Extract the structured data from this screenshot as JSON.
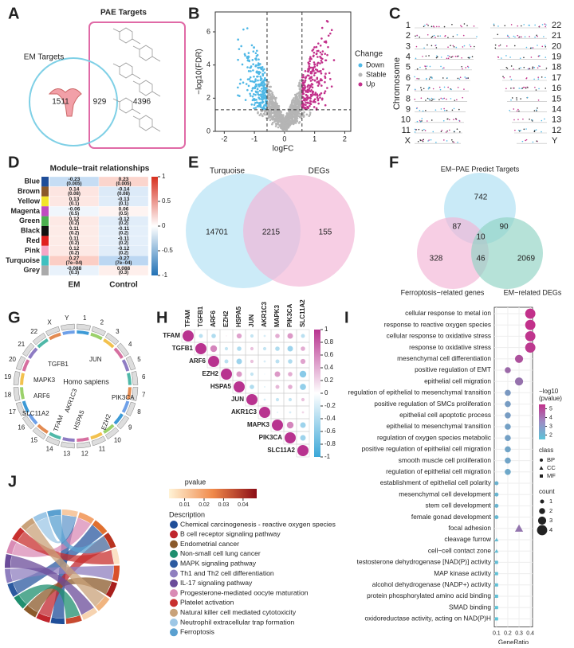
{
  "panels": {
    "A": {
      "letter": "A",
      "em_label": "EM Targets",
      "pae_label": "PAE Targets",
      "counts": [
        1511,
        929,
        4396
      ]
    },
    "B": {
      "letter": "B",
      "xlabel": "logFC",
      "ylabel": "−log10(FDR)",
      "xlim": [
        -2.3,
        2.2
      ],
      "ylim": [
        0,
        7.2
      ],
      "xticks": [
        -2,
        -1,
        0,
        1,
        2
      ],
      "yticks": [
        0,
        2,
        4,
        6
      ],
      "fc_cutoffs": [
        -0.58,
        0.58
      ],
      "fdr_cutoff": 1.3,
      "legend_title": "Change",
      "series": [
        {
          "name": "Down",
          "color": "#4fb8e6"
        },
        {
          "name": "Stable",
          "color": "#b5b5b5"
        },
        {
          "name": "Up",
          "color": "#c2318b"
        }
      ]
    },
    "C": {
      "letter": "C",
      "ylabel": "Chromosome",
      "left": [
        "1",
        "2",
        "3",
        "4",
        "5",
        "6",
        "7",
        "8",
        "9",
        "10",
        "11",
        "X"
      ],
      "right": [
        "22",
        "21",
        "20",
        "19",
        "18",
        "17",
        "16",
        "15",
        "14",
        "13",
        "12",
        "Y"
      ]
    },
    "D": {
      "letter": "D",
      "title": "Module−trait relationships",
      "columns": [
        "EM",
        "Control"
      ],
      "modules": [
        "Blue",
        "Brown",
        "Yellow",
        "Magenta",
        "Green",
        "Black",
        "Red",
        "Pink",
        "Turquoise",
        "Grey"
      ],
      "module_colors": [
        "#1f4e99",
        "#8b5a2b",
        "#f2e52a",
        "#c04bc0",
        "#4caf50",
        "#111111",
        "#e02020",
        "#f5a6c6",
        "#3fc0c0",
        "#aaaaaa"
      ],
      "cor": [
        [
          -0.23,
          0.23
        ],
        [
          0.14,
          -0.14
        ],
        [
          0.13,
          -0.13
        ],
        [
          -0.06,
          0.06
        ],
        [
          0.12,
          -0.12
        ],
        [
          0.11,
          -0.11
        ],
        [
          0.11,
          -0.11
        ],
        [
          0.12,
          -0.12
        ],
        [
          0.27,
          -0.27
        ],
        [
          -0.088,
          0.088
        ]
      ],
      "p_labels": [
        [
          "(0.005)",
          "(0.005)"
        ],
        [
          "(0.08)",
          "(0.08)"
        ],
        [
          "(0.1)",
          "(0.1)"
        ],
        [
          "(0.5)",
          "(0.5)"
        ],
        [
          "(0.2)",
          "(0.2)"
        ],
        [
          "(0.2)",
          "(0.2)"
        ],
        [
          "(0.2)",
          "(0.2)"
        ],
        [
          "(0.2)",
          "(0.2)"
        ],
        [
          "(7e−04)",
          "(7e−04)"
        ],
        [
          "(0.3)",
          "(0.3)"
        ]
      ],
      "colorbar_ticks": [
        1,
        0.5,
        0,
        -0.5,
        -1
      ]
    },
    "E": {
      "letter": "E",
      "left_label": "Turquoise",
      "right_label": "DEGs",
      "counts": [
        14701,
        2215,
        155
      ]
    },
    "F": {
      "letter": "F",
      "top_label": "EM−PAE Predict Targets",
      "left_label": "Ferroptosis−related genes",
      "right_label": "EM−related DEGs",
      "counts": {
        "top": 742,
        "top_left": 87,
        "center": 10,
        "top_right": 90,
        "left": 328,
        "bottom": 46,
        "right": 2069
      }
    },
    "G": {
      "letter": "G",
      "center_label": "Homo sapiens",
      "chromosomes": [
        "1",
        "2",
        "3",
        "4",
        "5",
        "6",
        "7",
        "8",
        "9",
        "10",
        "11",
        "12",
        "13",
        "14",
        "15",
        "16",
        "17",
        "18",
        "19",
        "20",
        "21",
        "22",
        "X",
        "Y"
      ],
      "genes": [
        "JUN",
        "TGFB1",
        "PIK3CA",
        "MAPK3",
        "ARF6",
        "SLC11A2",
        "AKR1C3",
        "TFAM",
        "HSPA5",
        "EZH2"
      ]
    },
    "H": {
      "letter": "H",
      "genes": [
        "TFAM",
        "TGFB1",
        "ARF6",
        "EZH2",
        "HSPA5",
        "JUN",
        "AKR1C3",
        "MAPK3",
        "PIK3CA",
        "SLC11A2"
      ],
      "matrix": [
        [
          1,
          -0.35,
          -0.4,
          0.1,
          0.45,
          -0.3,
          -0.2,
          0.4,
          0.5,
          -0.35
        ],
        [
          null,
          1,
          0.6,
          -0.3,
          -0.4,
          0.3,
          -0.3,
          -0.4,
          -0.5,
          0.4
        ],
        [
          null,
          null,
          1,
          -0.35,
          -0.5,
          0.3,
          -0.2,
          -0.35,
          -0.4,
          0.45
        ],
        [
          null,
          null,
          null,
          1,
          0.5,
          -0.3,
          -0.1,
          0.5,
          0.4,
          -0.6
        ],
        [
          null,
          null,
          null,
          null,
          1,
          -0.4,
          -0.15,
          0.35,
          0.4,
          -0.55
        ],
        [
          null,
          null,
          null,
          null,
          null,
          1,
          -0.2,
          -0.3,
          -0.3,
          0.3
        ],
        [
          null,
          null,
          null,
          null,
          null,
          null,
          1,
          -0.15,
          -0.2,
          0.2
        ],
        [
          null,
          null,
          null,
          null,
          null,
          null,
          null,
          1,
          0.6,
          -0.5
        ],
        [
          null,
          null,
          null,
          null,
          null,
          null,
          null,
          null,
          1,
          -0.5
        ],
        [
          null,
          null,
          null,
          null,
          null,
          null,
          null,
          null,
          null,
          1
        ]
      ],
      "colorbar_ticks": [
        1,
        0.8,
        0.6,
        0.4,
        0.2,
        0,
        -0.2,
        -0.4,
        -0.6,
        -0.8,
        -1
      ]
    },
    "I": {
      "letter": "I",
      "xlabel": "GeneRatio",
      "xlim": [
        0.08,
        0.42
      ],
      "xticks": [
        0.1,
        0.2,
        0.3,
        0.4
      ],
      "terms": [
        "cellular response to metal ion",
        "response to reactive oxygen species",
        "cellular response to oxidative stress",
        "response to oxidative stress",
        "mesenchymal cell differentiation",
        "positive regulation of EMT",
        "epithelial cell migration",
        "regulation of epithelial to mesenchymal transition",
        "positive regulation of SMCs proliferation",
        "epithelial cell apoptotic process",
        "epithelial to mesenchymal transition",
        "regulation of oxygen species metabolic",
        "positive regulation of epithelial cell migration",
        "smooth muscle cell proliferation",
        "regulation of epithelial cell migration",
        "establishment of epithelial cell polarity",
        "mesenchymal cell development",
        "stem cell development",
        "female gonad development",
        "focal adhesion",
        "cleavage furrow",
        "cell−cell contact zone",
        "testosterone dehydrogenase [NAD(P)] activity",
        "MAP kinase activity",
        "alcohol dehydrogenase (NADP+) activity",
        "protein phosphorylated amino acid binding",
        "SMAD binding",
        "oxidoreductase activity, acting on NAD(P)H"
      ],
      "gene_ratio": [
        0.4,
        0.4,
        0.4,
        0.4,
        0.3,
        0.2,
        0.3,
        0.2,
        0.2,
        0.2,
        0.2,
        0.2,
        0.2,
        0.2,
        0.2,
        0.1,
        0.1,
        0.1,
        0.1,
        0.3,
        0.1,
        0.1,
        0.1,
        0.1,
        0.1,
        0.1,
        0.1,
        0.1
      ],
      "count": [
        4,
        4,
        4,
        4,
        3,
        2,
        3,
        2,
        2,
        2,
        2,
        2,
        2,
        2,
        2,
        1,
        1,
        1,
        1,
        3,
        1,
        1,
        1,
        1,
        1,
        1,
        1,
        1
      ],
      "neglog10p": [
        5.2,
        5.2,
        5.1,
        5.0,
        4.4,
        3.8,
        3.6,
        2.6,
        2.5,
        2.5,
        2.4,
        2.4,
        2.3,
        2.3,
        2.2,
        2.0,
        1.9,
        1.9,
        1.8,
        3.5,
        1.7,
        1.7,
        1.7,
        1.6,
        1.6,
        1.6,
        1.5,
        1.5
      ],
      "class": [
        "BP",
        "BP",
        "BP",
        "BP",
        "BP",
        "BP",
        "BP",
        "BP",
        "BP",
        "BP",
        "BP",
        "BP",
        "BP",
        "BP",
        "BP",
        "BP",
        "BP",
        "BP",
        "BP",
        "CC",
        "CC",
        "CC",
        "MF",
        "MF",
        "MF",
        "MF",
        "MF",
        "MF"
      ],
      "color_title": "−log10\n(pvalue)",
      "color_ticks": [
        5,
        4,
        3,
        2
      ],
      "class_title": "class",
      "class_names": [
        "BP",
        "CC",
        "MF"
      ],
      "count_title": "count",
      "count_ticks": [
        1,
        2,
        3,
        4
      ]
    },
    "J": {
      "letter": "J",
      "pvalue_title": "pvalue",
      "pvalue_ticks": [
        0.01,
        0.02,
        0.03,
        0.04
      ],
      "description_title": "Description",
      "pathways": [
        "Chemical carcinogenesis - reactive oxygen species",
        "B cell receptor signaling pathway",
        "Endometrial cancer",
        "Non-small cell lung cancer",
        "MAPK signaling pathway",
        "Th1 and Th2 cell differentiation",
        "IL-17 signaling pathway",
        "Progesterone-mediated oocyte maturation",
        "Platelet activation",
        "Natural killer cell mediated cytotoxicity",
        "Neutrophil extracellular trap formation",
        "Ferroptosis"
      ],
      "colors": [
        "#1f4e99",
        "#c0262d",
        "#8b5a2b",
        "#1f8f6f",
        "#2c5aa0",
        "#8f7fbf",
        "#6b4c9a",
        "#d98bb5",
        "#c8302f",
        "#c9a27a",
        "#9dc7e6",
        "#5aa0d0"
      ]
    }
  }
}
